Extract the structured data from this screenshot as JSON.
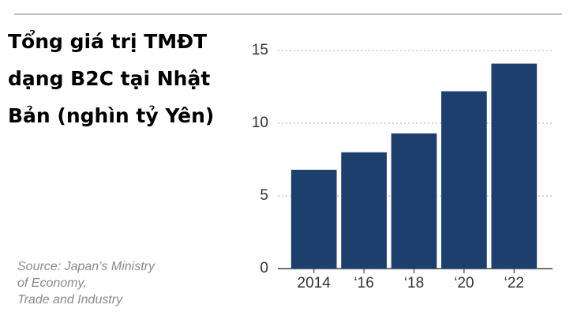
{
  "chart_data": {
    "type": "bar",
    "title": [
      "Tổng giá trị TMĐT",
      "dạng B2C tại Nhật",
      "Bản (nghìn tỷ Yên)"
    ],
    "source": [
      "Source: Japan’s Ministry",
      "of Economy,",
      "Trade and Industry"
    ],
    "categories": [
      "2014",
      "‘16",
      "‘18",
      "‘20",
      "‘22"
    ],
    "values": [
      6.8,
      8.0,
      9.3,
      12.2,
      14.1
    ],
    "color": "#1d3f6e",
    "ylim": [
      0,
      15
    ],
    "yticks": [
      0,
      5,
      10,
      15
    ],
    "grid": true
  }
}
